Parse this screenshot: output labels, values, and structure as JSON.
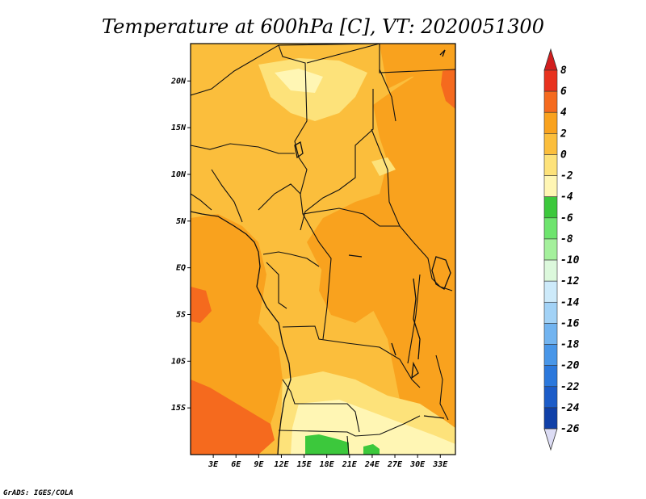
{
  "title": "Temperature at 600hPa [C], VT: 2020051300",
  "credit": "GrADS: IGES/COLA",
  "map": {
    "lon_range": [
      0,
      35
    ],
    "lat_range": [
      -20,
      24
    ],
    "x_ticks": [
      {
        "lon": 3,
        "label": "3E"
      },
      {
        "lon": 6,
        "label": "6E"
      },
      {
        "lon": 9,
        "label": "9E"
      },
      {
        "lon": 12,
        "label": "12E"
      },
      {
        "lon": 15,
        "label": "15E"
      },
      {
        "lon": 18,
        "label": "18E"
      },
      {
        "lon": 21,
        "label": "21E"
      },
      {
        "lon": 24,
        "label": "24E"
      },
      {
        "lon": 27,
        "label": "27E"
      },
      {
        "lon": 30,
        "label": "30E"
      },
      {
        "lon": 33,
        "label": "33E"
      }
    ],
    "y_ticks": [
      {
        "lat": 20,
        "label": "20N"
      },
      {
        "lat": 15,
        "label": "15N"
      },
      {
        "lat": 10,
        "label": "10N"
      },
      {
        "lat": 5,
        "label": "5N"
      },
      {
        "lat": 0,
        "label": "EQ"
      },
      {
        "lat": -5,
        "label": "5S"
      },
      {
        "lat": -10,
        "label": "10S"
      },
      {
        "lat": -15,
        "label": "15S"
      }
    ]
  },
  "colorbar": {
    "levels": [
      "8",
      "6",
      "4",
      "2",
      "0",
      "-2",
      "-4",
      "-6",
      "-8",
      "-10",
      "-12",
      "-14",
      "-16",
      "-18",
      "-20",
      "-22",
      "-24",
      "-26"
    ],
    "colors": [
      "#e8321e",
      "#f56a1e",
      "#f9a21e",
      "#fbbe3c",
      "#fde27a",
      "#fff6b4",
      "#3cc83c",
      "#6ee46e",
      "#a4f09c",
      "#dcf8dc",
      "#cdeafa",
      "#a2d2f6",
      "#72b4f0",
      "#4896e8",
      "#2b78dc",
      "#1c5cc8",
      "#1040a8",
      "#0a1a6e"
    ],
    "top_color": "#d21e1e",
    "bottom_color": "#dcdcf4"
  },
  "field_colors": {
    "range_0_2": "#fbbe3c",
    "range_2_4": "#f9a21e",
    "range_4_6": "#f56a1e",
    "range_m2_0": "#fde27a",
    "range_m4_m2": "#fff6b4",
    "range_m6_m4": "#3cc83c"
  }
}
